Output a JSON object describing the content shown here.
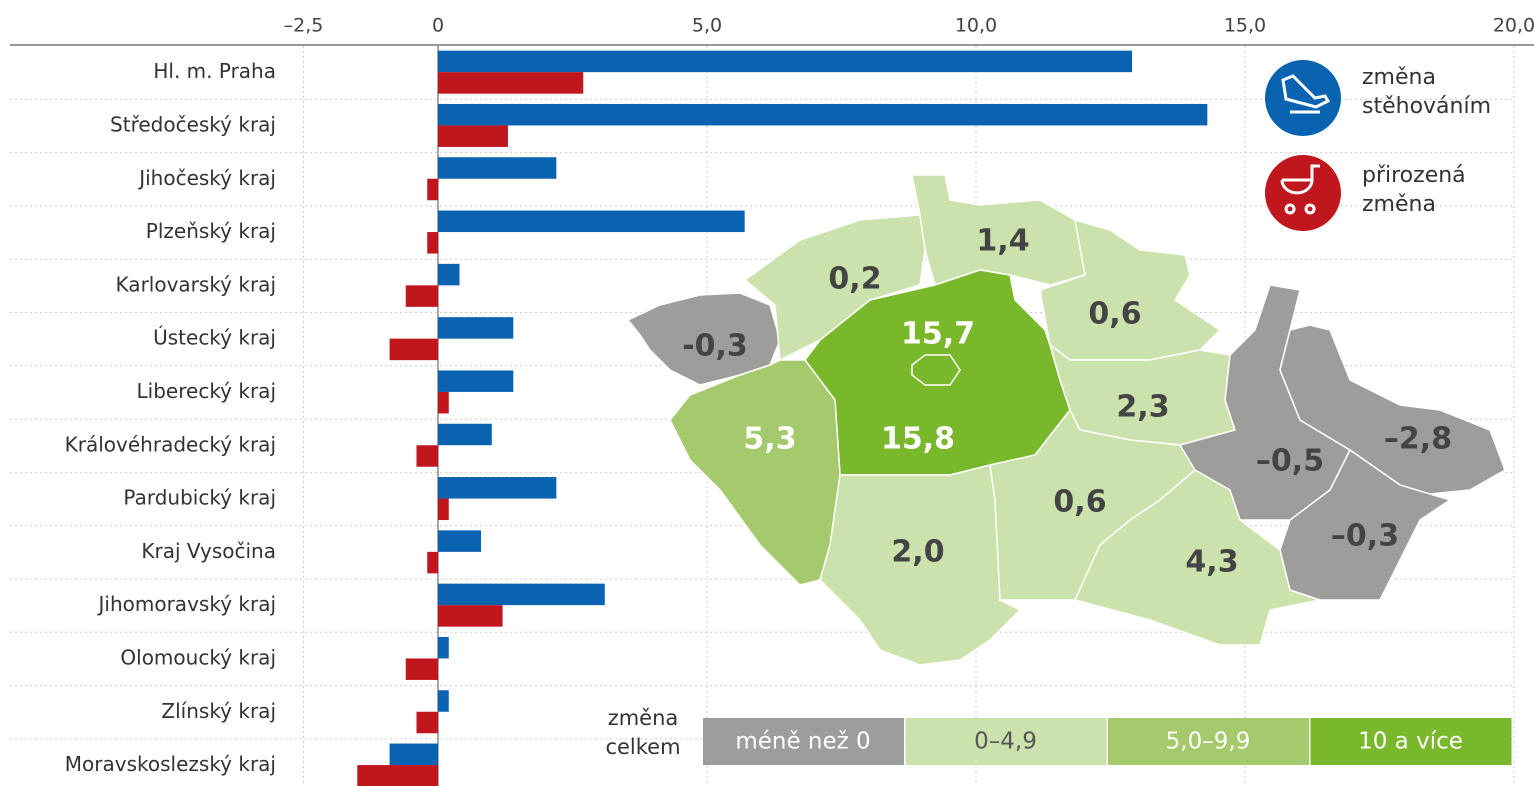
{
  "chart_data": {
    "type": "bar",
    "categories": [
      "Hl. m. Praha",
      "Středočeský kraj",
      "Jihočeský kraj",
      "Plzeňský kraj",
      "Karlovarský kraj",
      "Ústecký kraj",
      "Liberecký kraj",
      "Královéhradecký kraj",
      "Pardubický kraj",
      "Kraj Vysočina",
      "Jihomoravský kraj",
      "Olomoucký kraj",
      "Zlínský kraj",
      "Moravskoslezský kraj"
    ],
    "series": [
      {
        "name": "změna stěhováním",
        "color": "#0a63b0",
        "values": [
          12.9,
          14.3,
          2.2,
          5.7,
          0.4,
          1.4,
          1.4,
          1.0,
          2.2,
          0.8,
          3.1,
          0.2,
          0.2,
          -0.9
        ]
      },
      {
        "name": "přirozená změna",
        "color": "#c0161d",
        "values": [
          2.7,
          1.3,
          -0.2,
          -0.2,
          -0.6,
          -0.9,
          0.2,
          -0.4,
          0.2,
          -0.2,
          1.2,
          -0.6,
          -0.4,
          -1.5
        ]
      }
    ],
    "xlim": [
      -3.0,
      20.0
    ],
    "xticks": [
      {
        "value": -2.5,
        "label": "–2,5"
      },
      0,
      {
        "value": 5,
        "label": "5,0"
      },
      {
        "value": 10,
        "label": "10,0"
      },
      {
        "value": 15,
        "label": "15,0"
      },
      {
        "value": 20,
        "label": "20,0"
      }
    ],
    "grid": true,
    "map": {
      "legend_title": "změna celkem",
      "legend": [
        {
          "label": "méně než 0",
          "color": "#9d9d9c"
        },
        {
          "label": "0–4,9",
          "color": "#cbe2ac"
        },
        {
          "label": "5,0–9,9",
          "color": "#a4ca6c"
        },
        {
          "label": "10 a více",
          "color": "#79b82a"
        }
      ],
      "regions": [
        {
          "label": "-0,3",
          "class": 0
        },
        {
          "label": "0,2",
          "class": 1
        },
        {
          "label": "1,4",
          "class": 1
        },
        {
          "label": "0,6",
          "class": 1
        },
        {
          "label": "15,8",
          "class": 3
        },
        {
          "label": "15,7",
          "class": 3
        },
        {
          "label": "5,3",
          "class": 2
        },
        {
          "label": "2,0",
          "class": 1
        },
        {
          "label": "2,3",
          "class": 1
        },
        {
          "label": "0,6",
          "class": 1
        },
        {
          "label": "4,3",
          "class": 1
        },
        {
          "label": "–0,5",
          "class": 0
        },
        {
          "label": "–2,8",
          "class": 0
        },
        {
          "label": "–0,3",
          "class": 0
        }
      ]
    }
  }
}
